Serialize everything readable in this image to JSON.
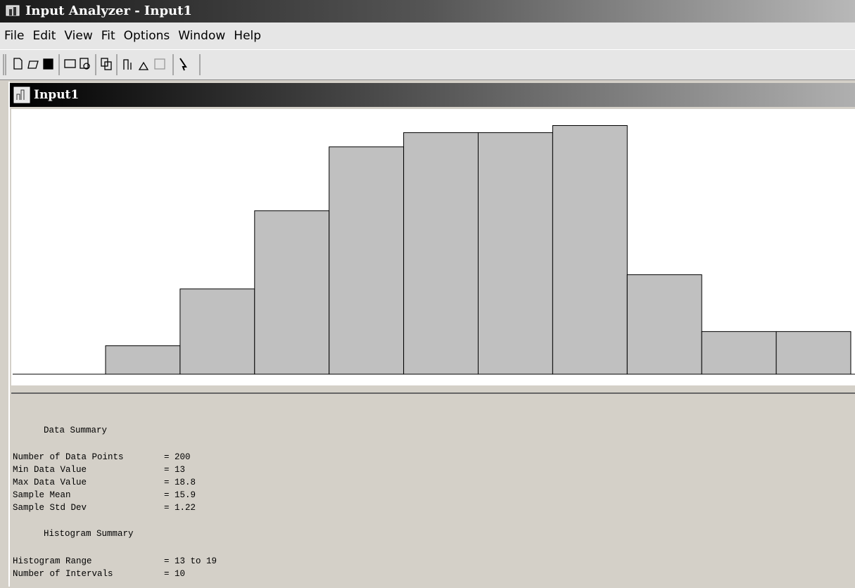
{
  "window": {
    "title": "Input Analyzer - Input1"
  },
  "menu": [
    "File",
    "Edit",
    "View",
    "Fit",
    "Options",
    "Window",
    "Help"
  ],
  "child_window": {
    "title": "Input1"
  },
  "chart_data": {
    "type": "histogram",
    "bins": [
      13,
      13.6,
      14.2,
      14.8,
      15.4,
      16,
      16.6,
      17.2,
      17.8,
      18.4,
      19
    ],
    "values": [
      4,
      12,
      23,
      32,
      34,
      34,
      35,
      14,
      6,
      6
    ],
    "color": "#c0c0c0"
  },
  "summary": {
    "data_title": "Data Summary",
    "data_rows": [
      {
        "label": "Number of Data Points",
        "sign": "=",
        "value": 200
      },
      {
        "label": "Min Data Value",
        "sign": "=",
        "value": 13
      },
      {
        "label": "Max Data Value",
        "sign": "=",
        "value": 18.8
      },
      {
        "label": "Sample Mean",
        "sign": "=",
        "value": 15.9
      },
      {
        "label": "Sample Std Dev",
        "sign": "=",
        "value": 1.22
      }
    ],
    "histogram_title": "Histogram Summary",
    "histogram_rows": [
      {
        "label": "Histogram Range",
        "sign": "=",
        "value": "13 to 19"
      },
      {
        "label": "Number of Intervals",
        "sign": "=",
        "value": 10
      }
    ]
  }
}
